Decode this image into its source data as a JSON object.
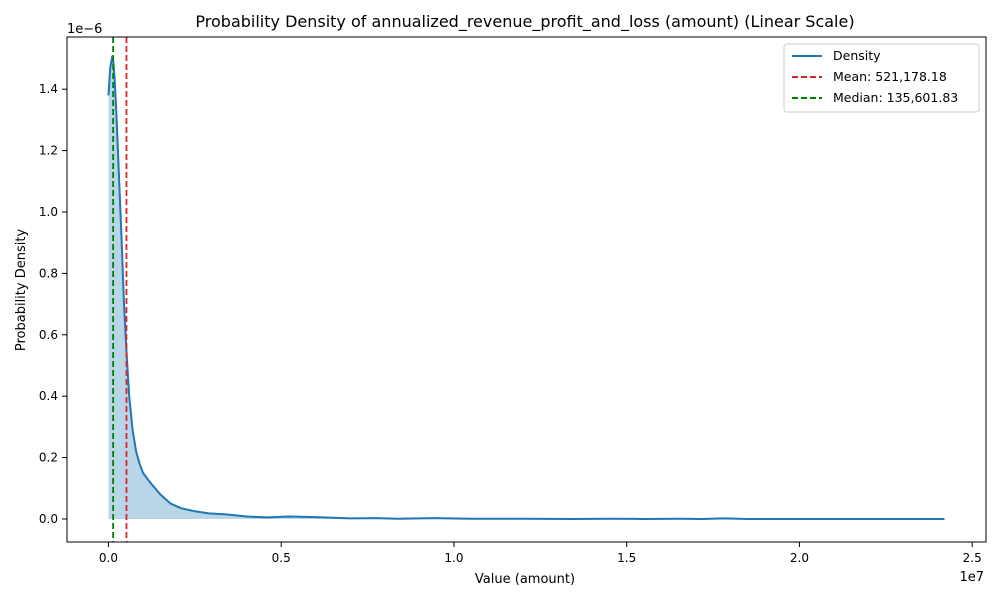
{
  "chart_data": {
    "type": "area",
    "title": "Probability Density of annualized_revenue_profit_and_loss (amount) (Linear Scale)",
    "xlabel": "Value (amount)",
    "ylabel": "Probability Density",
    "x_offset_label": "1e7",
    "y_offset_label": "1e−6",
    "xlim": [
      -1200000,
      25400000
    ],
    "ylim": [
      -7.5e-08,
      1.57e-06
    ],
    "x_ticks": [
      {
        "value": 0,
        "label": "0.0"
      },
      {
        "value": 5000000,
        "label": "0.5"
      },
      {
        "value": 10000000,
        "label": "1.0"
      },
      {
        "value": 15000000,
        "label": "1.5"
      },
      {
        "value": 20000000,
        "label": "2.0"
      },
      {
        "value": 25000000,
        "label": "2.5"
      }
    ],
    "y_ticks": [
      {
        "value": 0,
        "label": "0.0"
      },
      {
        "value": 2e-07,
        "label": "0.2"
      },
      {
        "value": 4e-07,
        "label": "0.4"
      },
      {
        "value": 6e-07,
        "label": "0.6"
      },
      {
        "value": 8e-07,
        "label": "0.8"
      },
      {
        "value": 1e-06,
        "label": "1.0"
      },
      {
        "value": 1.2e-06,
        "label": "1.2"
      },
      {
        "value": 1.4e-06,
        "label": "1.4"
      }
    ],
    "grid": false,
    "legend_position": "top-right",
    "series": [
      {
        "name": "Density",
        "color": "#1f77b4",
        "fill_color": "#b9d5e8",
        "x": [
          0,
          50000,
          100000,
          140000,
          180000,
          230000,
          300000,
          380000,
          450000,
          520000,
          600000,
          700000,
          800000,
          900000,
          1000000,
          1200000,
          1500000,
          1800000,
          2100000,
          2500000,
          2900000,
          3400000,
          4000000,
          4600000,
          5200000,
          6000000,
          7000000,
          7800000,
          8400000,
          9400000,
          10500000,
          12000000,
          13500000,
          14500000,
          15500000,
          16500000,
          17200000,
          17800000,
          18500000,
          20000000,
          21500000,
          23000000,
          24200000
        ],
        "y": [
          1.38e-06,
          1.47e-06,
          1.5e-06,
          1.49e-06,
          1.43e-06,
          1.32e-06,
          1.13e-06,
          9.1e-07,
          7e-07,
          5.5e-07,
          4e-07,
          2.9e-07,
          2.2e-07,
          1.8e-07,
          1.5e-07,
          1.2e-07,
          8e-08,
          5e-08,
          3.5e-08,
          2.5e-08,
          1.8e-08,
          1.5e-08,
          8e-09,
          5e-09,
          8e-09,
          6e-09,
          2e-09,
          3e-09,
          1e-09,
          3e-09,
          1e-09,
          1e-09,
          0.0,
          1e-09,
          0.0,
          1e-09,
          0.0,
          2e-09,
          0.0,
          0.0,
          0.0,
          0.0,
          0.0
        ]
      }
    ],
    "reference_lines": [
      {
        "name": "Mean: 521,178.18",
        "value": 521178.18,
        "color": "#d62728"
      },
      {
        "name": "Median: 135,601.83",
        "value": 135601.83,
        "color": "#008000"
      }
    ]
  }
}
